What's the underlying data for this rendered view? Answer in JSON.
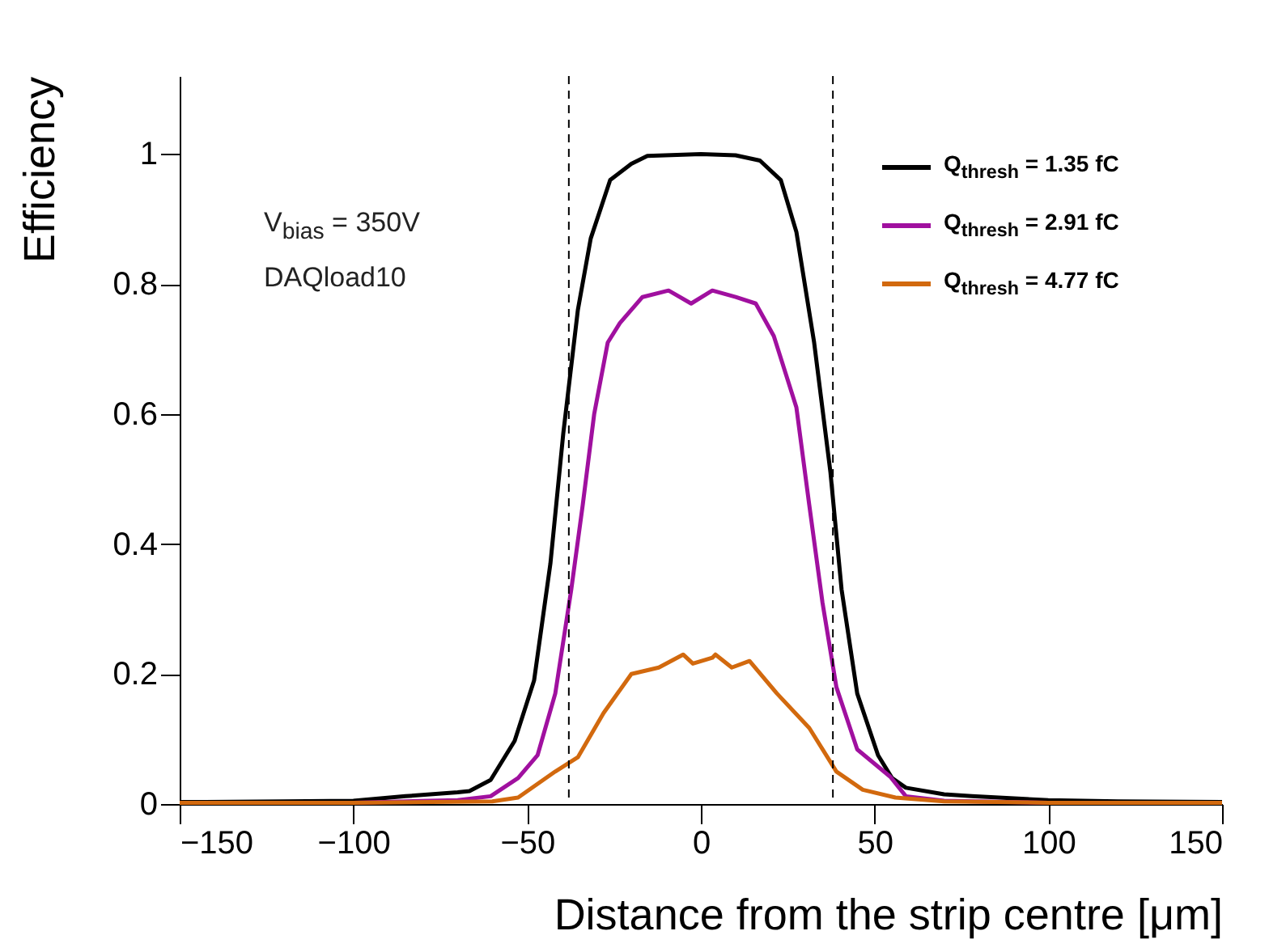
{
  "chart_data": {
    "type": "line",
    "xlabel": "Distance from the strip centre [μm]",
    "ylabel": "Efficiency",
    "xlim": [
      -150,
      150
    ],
    "xticks": [
      -150,
      -100,
      -50,
      0,
      50,
      100,
      150
    ],
    "ylim": [
      0,
      1.12
    ],
    "yticks": [
      0,
      0.2,
      0.4,
      0.6,
      0.8,
      1
    ],
    "grid": false,
    "legend": "top right",
    "line_style": "solid",
    "marker": "none",
    "annotations": [
      "V$_{bias}$ = 350V",
      "DAQload10"
    ],
    "ref_lines": [
      {
        "axis": "x",
        "value": -38,
        "label": null,
        "color": "#000000",
        "line_style": "dashed"
      },
      {
        "axis": "x",
        "value": 38,
        "label": null,
        "color": "#000000",
        "line_style": "dashed"
      }
    ],
    "series": [
      {
        "name": "Q$_{thresh}$ = 1.35 fC",
        "color": "#000000",
        "x": [
          -150,
          -120,
          -100,
          -85,
          -70,
          -66.6,
          -60.5,
          -53.6,
          -48,
          -43.3,
          -39.6,
          -35.4,
          -31.7,
          -26.1,
          -20,
          -15.4,
          0,
          10,
          17,
          23,
          27.5,
          32.6,
          37.3,
          40.5,
          45,
          51,
          55,
          59,
          70,
          78,
          100,
          120,
          150
        ],
        "values": [
          0.003,
          0.004,
          0.005,
          0.012,
          0.018,
          0.02,
          0.037,
          0.097,
          0.19,
          0.37,
          0.57,
          0.76,
          0.87,
          0.96,
          0.985,
          0.997,
          1,
          0.998,
          0.99,
          0.96,
          0.88,
          0.71,
          0.51,
          0.33,
          0.17,
          0.075,
          0.04,
          0.025,
          0.015,
          0.012,
          0.006,
          0.004,
          0.003
        ]
      },
      {
        "name": "Q$_{thresh}$ = 2.91 fC",
        "color": "#a0109f",
        "x": [
          -100,
          -70,
          -60.5,
          -52.6,
          -47,
          -41.9,
          -37.3,
          -34,
          -30.7,
          -26.8,
          -23.3,
          -16.8,
          -9.3,
          -2.8,
          3.3,
          10,
          15.8,
          21,
          27.5,
          31.2,
          35,
          39,
          45,
          54.5,
          59,
          70,
          100
        ],
        "values": [
          0.002,
          0.006,
          0.012,
          0.04,
          0.075,
          0.17,
          0.33,
          0.46,
          0.6,
          0.71,
          0.74,
          0.78,
          0.79,
          0.77,
          0.79,
          0.78,
          0.77,
          0.72,
          0.61,
          0.46,
          0.31,
          0.18,
          0.084,
          0.042,
          0.012,
          0.005,
          0.002
        ]
      },
      {
        "name": "Q$_{thresh}$ = 4.77 fC",
        "color": "#d2690e",
        "x": [
          -150,
          -100,
          -60,
          -52.6,
          -41.9,
          -35.4,
          -28,
          -20,
          -12.1,
          -5.1,
          -2.3,
          3.3,
          4.2,
          8.9,
          14,
          21.9,
          31.2,
          39,
          46.6,
          56,
          70,
          100,
          150
        ],
        "values": [
          0.002,
          0.002,
          0.004,
          0.01,
          0.05,
          0.072,
          0.14,
          0.2,
          0.21,
          0.23,
          0.216,
          0.225,
          0.23,
          0.21,
          0.22,
          0.17,
          0.117,
          0.05,
          0.022,
          0.01,
          0.004,
          0.002,
          0.002
        ]
      }
    ]
  }
}
